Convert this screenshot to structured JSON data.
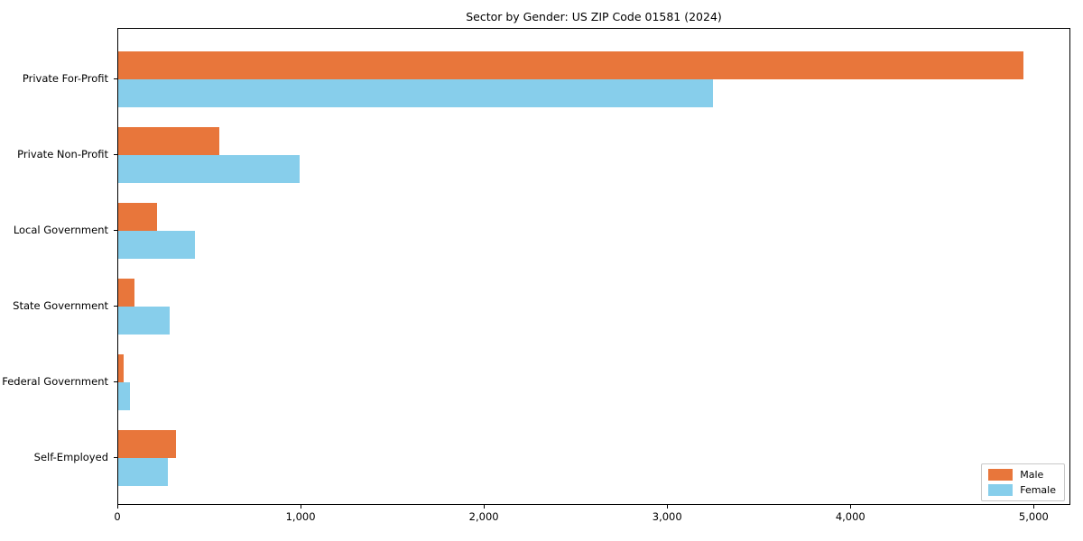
{
  "title": "Sector by Gender: US ZIP Code 01581 (2024)",
  "colors": {
    "male": "#E8763B",
    "female": "#87CEEB",
    "axis": "#000000",
    "legend_border": "#c8c8c8",
    "background": "#ffffff"
  },
  "legend": {
    "position": "lower right",
    "items": [
      {
        "label": "Male",
        "color": "#E8763B"
      },
      {
        "label": "Female",
        "color": "#87CEEB"
      }
    ]
  },
  "chart_data": {
    "type": "bar",
    "orientation": "horizontal",
    "title": "Sector by Gender: US ZIP Code 01581 (2024)",
    "categories": [
      "Private For-Profit",
      "Private Non-Profit",
      "Local Government",
      "State Government",
      "Federal Government",
      "Self-Employed"
    ],
    "series": [
      {
        "name": "Male",
        "color": "#E8763B",
        "values": [
          4950,
          555,
          210,
          90,
          30,
          315
        ]
      },
      {
        "name": "Female",
        "color": "#87CEEB",
        "values": [
          3250,
          990,
          420,
          280,
          65,
          270
        ]
      }
    ],
    "xlabel": "",
    "ylabel": "",
    "xlim": [
      0,
      5200
    ],
    "xticks": [
      0,
      1000,
      2000,
      3000,
      4000,
      5000
    ],
    "xtick_labels": [
      "0",
      "1,000",
      "2,000",
      "3,000",
      "4,000",
      "5,000"
    ],
    "grid": false,
    "legend_position": "lower right"
  }
}
